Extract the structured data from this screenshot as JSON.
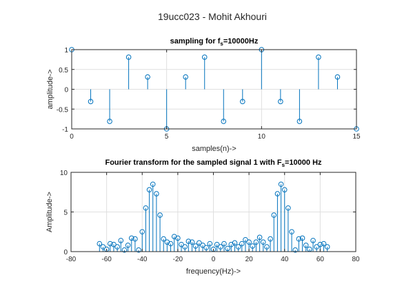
{
  "figure_title": "19ucc023 - Mohit Akhouri",
  "chart_data": [
    {
      "type": "stem",
      "title_main": "sampling for f",
      "title_sub": "s",
      "title_tail": "=10000Hz",
      "xlabel": "samples(n)->",
      "ylabel": "amplitude->",
      "xlim": [
        0,
        15
      ],
      "ylim": [
        -1,
        1
      ],
      "xticks": [
        0,
        5,
        10,
        15
      ],
      "yticks": [
        -1,
        -0.5,
        0,
        0.5,
        1
      ],
      "grid": true,
      "color": "#0072bd",
      "x": [
        0,
        1,
        2,
        3,
        4,
        5,
        6,
        7,
        8,
        9,
        10,
        11,
        12,
        13,
        14,
        15
      ],
      "y": [
        1.0,
        -0.31,
        -0.81,
        0.81,
        0.31,
        -1.0,
        0.31,
        0.81,
        -0.81,
        -0.31,
        1.0,
        -0.31,
        -0.81,
        0.81,
        0.31,
        -1.0
      ]
    },
    {
      "type": "stem",
      "title_main": "Fourier transform for the sampled signal 1 with F",
      "title_sub": "s",
      "title_tail": "=10000 Hz",
      "xlabel": "frequency(Hz)->",
      "ylabel": "Amplitude->",
      "xlim": [
        -80,
        80
      ],
      "ylim": [
        0,
        10
      ],
      "xticks": [
        -80,
        -60,
        -40,
        -20,
        0,
        20,
        40,
        60,
        80
      ],
      "yticks": [
        0,
        5,
        10
      ],
      "grid": true,
      "color": "#0072bd",
      "x": [
        -64,
        -62,
        -60,
        -58,
        -56,
        -54,
        -52,
        -50,
        -48,
        -46,
        -44,
        -42,
        -40,
        -38,
        -36,
        -34,
        -32,
        -30,
        -28,
        -26,
        -24,
        -22,
        -20,
        -18,
        -16,
        -14,
        -12,
        -10,
        -8,
        -6,
        -4,
        -2,
        0,
        2,
        4,
        6,
        8,
        10,
        12,
        14,
        16,
        18,
        20,
        22,
        24,
        26,
        28,
        30,
        32,
        34,
        36,
        38,
        40,
        42,
        44,
        46,
        48,
        50,
        52,
        54,
        56,
        58,
        60,
        62,
        64
      ],
      "y": [
        1.0,
        0.6,
        0.3,
        1.0,
        0.9,
        0.6,
        1.4,
        0.2,
        0.8,
        1.7,
        1.6,
        0.2,
        2.5,
        5.5,
        7.8,
        8.5,
        7.3,
        4.6,
        1.6,
        1.2,
        1.0,
        1.9,
        1.7,
        0.9,
        0.6,
        1.3,
        1.2,
        0.7,
        1.1,
        0.8,
        0.5,
        1.0,
        0.3,
        0.9,
        0.6,
        1.0,
        0.4,
        0.9,
        1.1,
        0.6,
        1.0,
        1.5,
        1.2,
        0.7,
        1.2,
        1.8,
        1.2,
        0.6,
        1.6,
        4.6,
        7.3,
        8.5,
        7.8,
        5.5,
        2.5,
        0.2,
        1.6,
        1.7,
        0.8,
        0.3,
        1.4,
        0.6,
        0.9,
        1.0,
        0.6
      ]
    }
  ]
}
